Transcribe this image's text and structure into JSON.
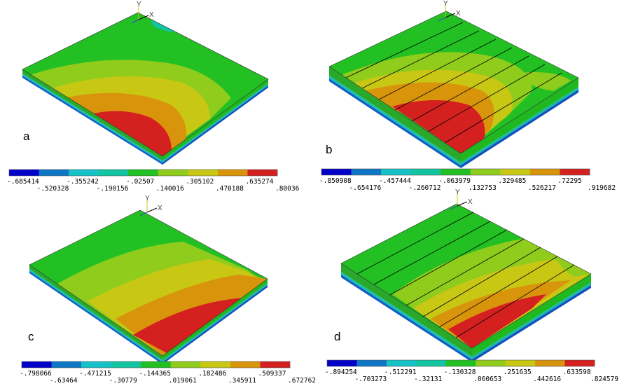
{
  "panels": [
    {
      "id": "a",
      "label": "a",
      "legend": {
        "colors": [
          "#0000c8",
          "#0d75c4",
          "#15c2c8",
          "#12c4a0",
          "#22c022",
          "#8fcc1c",
          "#c8c814",
          "#d8950c",
          "#d52020"
        ],
        "values_bottom": [
          "-.685414",
          "-.355242",
          "-.02507",
          ".305102",
          ".635274"
        ],
        "values_top": [
          "-.520328",
          "-.190156",
          ".140016",
          ".470188",
          ".80036"
        ]
      }
    },
    {
      "id": "b",
      "label": "b",
      "legend": {
        "colors": [
          "#0000c8",
          "#0d75c4",
          "#15c2c8",
          "#12c4a0",
          "#22c022",
          "#8fcc1c",
          "#c8c814",
          "#d8950c",
          "#d52020"
        ],
        "values_bottom": [
          "-.850908",
          "-.457444",
          "-.063979",
          ".329485",
          ".72295"
        ],
        "values_top": [
          "-.654176",
          "-.260712",
          ".132753",
          ".526217",
          ".919682"
        ]
      }
    },
    {
      "id": "c",
      "label": "c",
      "legend": {
        "colors": [
          "#0000c8",
          "#0d75c4",
          "#15c2c8",
          "#12c4a0",
          "#22c022",
          "#8fcc1c",
          "#c8c814",
          "#d8950c",
          "#d52020"
        ],
        "values_bottom": [
          "-.798066",
          "-.471215",
          "-.144365",
          ".182486",
          ".509337"
        ],
        "values_top": [
          "-.63464",
          "-.30779",
          ".019061",
          ".345911",
          ".672762"
        ]
      }
    },
    {
      "id": "d",
      "label": "d",
      "legend": {
        "colors": [
          "#0000c8",
          "#0d75c4",
          "#15c2c8",
          "#12c4a0",
          "#22c022",
          "#8fcc1c",
          "#c8c814",
          "#d8950c",
          "#d52020"
        ],
        "values_bottom": [
          "-.894254",
          "-.512291",
          "-.130328",
          ".251635",
          ".633598"
        ],
        "values_top": [
          "-.703273",
          "-.32131",
          ".060653",
          ".442616",
          ".824579"
        ]
      }
    }
  ],
  "axes": {
    "y": "Y",
    "x": "X"
  }
}
